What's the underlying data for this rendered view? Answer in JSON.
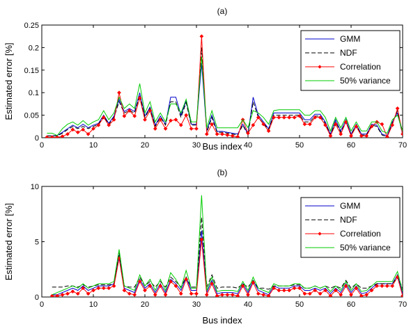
{
  "chart_data": [
    {
      "type": "line",
      "title": "(a)",
      "xlabel": "Bus index",
      "ylabel": "Estimated error [%]",
      "xlim": [
        0,
        70
      ],
      "ylim": [
        0,
        0.25
      ],
      "xticks": [
        0,
        10,
        20,
        30,
        40,
        50,
        60,
        70
      ],
      "yticks": [
        0,
        0.05,
        0.1,
        0.15,
        0.2,
        0.25
      ],
      "ytick_labels": [
        "0",
        "0.05",
        "0.1",
        "0.15",
        "0.2",
        "0.25"
      ],
      "grid": false,
      "legend": "top-right",
      "x": [
        1,
        2,
        3,
        4,
        5,
        6,
        7,
        8,
        9,
        10,
        11,
        12,
        13,
        14,
        15,
        16,
        17,
        18,
        19,
        20,
        21,
        22,
        23,
        24,
        25,
        26,
        27,
        28,
        29,
        30,
        31,
        32,
        33,
        34,
        35,
        36,
        37,
        38,
        39,
        40,
        41,
        42,
        43,
        44,
        45,
        46,
        47,
        48,
        49,
        50,
        51,
        52,
        53,
        54,
        55,
        56,
        57,
        58,
        59,
        60,
        61,
        62,
        63,
        64,
        65,
        66,
        67,
        68,
        69,
        70
      ],
      "series": [
        {
          "name": "GMM",
          "color": "#0000cc",
          "style": "solid",
          "marker": "none",
          "values": [
            0.004,
            0.004,
            0.005,
            0.012,
            0.02,
            0.028,
            0.022,
            0.03,
            0.022,
            0.028,
            0.032,
            0.05,
            0.032,
            0.048,
            0.085,
            0.058,
            0.065,
            0.058,
            0.1,
            0.048,
            0.068,
            0.028,
            0.048,
            0.03,
            0.09,
            0.09,
            0.05,
            0.082,
            0.03,
            0.03,
            0.165,
            0.015,
            0.05,
            0.014,
            0.014,
            0.012,
            0.01,
            0.008,
            0.03,
            0.008,
            0.09,
            0.05,
            0.035,
            0.02,
            0.055,
            0.055,
            0.055,
            0.055,
            0.055,
            0.055,
            0.04,
            0.04,
            0.052,
            0.052,
            0.035,
            0.008,
            0.04,
            0.015,
            0.04,
            0.008,
            0.03,
            0.008,
            0.008,
            0.03,
            0.028,
            0.008,
            0.004,
            0.035,
            0.055,
            0.008
          ]
        },
        {
          "name": "NDF",
          "color": "#000000",
          "style": "dashed",
          "marker": "none",
          "values": [
            0.004,
            0.004,
            0.004,
            0.01,
            0.018,
            0.025,
            0.02,
            0.025,
            0.02,
            0.025,
            0.03,
            0.048,
            0.03,
            0.045,
            0.08,
            0.055,
            0.06,
            0.055,
            0.095,
            0.045,
            0.065,
            0.025,
            0.045,
            0.028,
            0.08,
            0.08,
            0.045,
            0.078,
            0.028,
            0.028,
            0.2,
            0.012,
            0.045,
            0.012,
            0.012,
            0.01,
            0.008,
            0.006,
            0.028,
            0.006,
            0.08,
            0.045,
            0.032,
            0.018,
            0.05,
            0.05,
            0.05,
            0.05,
            0.05,
            0.05,
            0.035,
            0.035,
            0.048,
            0.048,
            0.032,
            0.006,
            0.035,
            0.012,
            0.035,
            0.006,
            0.028,
            0.006,
            0.006,
            0.028,
            0.025,
            0.006,
            0.002,
            0.032,
            0.06,
            0.006
          ]
        },
        {
          "name": "Correlation",
          "color": "#ff0000",
          "style": "solid",
          "marker": "diamond",
          "values": [
            0.001,
            0.001,
            0.001,
            0.003,
            0.008,
            0.018,
            0.012,
            0.018,
            0.008,
            0.02,
            0.028,
            0.045,
            0.028,
            0.04,
            0.1,
            0.048,
            0.06,
            0.048,
            0.088,
            0.04,
            0.06,
            0.02,
            0.04,
            0.02,
            0.038,
            0.04,
            0.028,
            0.05,
            0.02,
            0.02,
            0.225,
            0.008,
            0.03,
            0.008,
            0.008,
            0.006,
            0.004,
            0.002,
            0.04,
            0.01,
            0.028,
            0.045,
            0.03,
            0.015,
            0.045,
            0.045,
            0.045,
            0.045,
            0.045,
            0.048,
            0.03,
            0.03,
            0.045,
            0.045,
            0.028,
            0.004,
            0.03,
            0.008,
            0.035,
            0.004,
            0.025,
            0.004,
            0.004,
            0.025,
            0.035,
            0.03,
            0.002,
            0.028,
            0.065,
            0.008
          ]
        },
        {
          "name": "50% variance",
          "color": "#00cc00",
          "style": "solid",
          "marker": "none",
          "values": [
            0.01,
            0.01,
            0.005,
            0.02,
            0.03,
            0.035,
            0.028,
            0.038,
            0.028,
            0.035,
            0.04,
            0.06,
            0.04,
            0.055,
            0.09,
            0.065,
            0.075,
            0.065,
            0.12,
            0.055,
            0.08,
            0.035,
            0.055,
            0.035,
            0.075,
            0.075,
            0.055,
            0.085,
            0.035,
            0.035,
            0.18,
            0.022,
            0.06,
            0.022,
            0.022,
            0.022,
            0.022,
            0.022,
            0.04,
            0.022,
            0.06,
            0.055,
            0.045,
            0.03,
            0.06,
            0.062,
            0.062,
            0.062,
            0.062,
            0.062,
            0.05,
            0.05,
            0.06,
            0.06,
            0.045,
            0.015,
            0.045,
            0.022,
            0.045,
            0.015,
            0.035,
            0.015,
            0.015,
            0.035,
            0.035,
            0.015,
            0.01,
            0.04,
            0.05,
            0.015
          ]
        }
      ]
    },
    {
      "type": "line",
      "title": "(b)",
      "xlabel": "Bus index",
      "ylabel": "Estimated error [%]",
      "xlim": [
        0,
        70
      ],
      "ylim": [
        0,
        10
      ],
      "xticks": [
        0,
        10,
        20,
        30,
        40,
        50,
        60,
        70
      ],
      "yticks": [
        0,
        5,
        10
      ],
      "ytick_labels": [
        "0",
        "5",
        "10"
      ],
      "grid": false,
      "legend": "top-right",
      "x": [
        2,
        3,
        4,
        5,
        6,
        7,
        8,
        9,
        10,
        11,
        12,
        13,
        14,
        15,
        16,
        17,
        18,
        19,
        20,
        21,
        22,
        23,
        24,
        25,
        26,
        27,
        28,
        29,
        30,
        31,
        32,
        33,
        34,
        35,
        36,
        37,
        38,
        39,
        40,
        41,
        42,
        43,
        44,
        45,
        46,
        47,
        48,
        49,
        50,
        51,
        52,
        53,
        54,
        55,
        56,
        57,
        58,
        59,
        60,
        61,
        62,
        63,
        64,
        65,
        66,
        67,
        68,
        69,
        70
      ],
      "series": [
        {
          "name": "GMM",
          "color": "#0000cc",
          "style": "solid",
          "marker": "none",
          "values": [
            0.2,
            0.2,
            0.4,
            0.6,
            0.8,
            0.6,
            1.0,
            0.6,
            0.8,
            1.0,
            1.0,
            1.0,
            1.2,
            3.8,
            0.8,
            0.6,
            0.4,
            1.6,
            0.8,
            1.2,
            0.4,
            1.2,
            0.4,
            1.6,
            1.2,
            0.6,
            1.8,
            0.6,
            0.6,
            6.0,
            0.4,
            1.5,
            0.3,
            0.4,
            0.4,
            0.4,
            0.3,
            1.2,
            0.4,
            1.5,
            0.6,
            0.4,
            0.2,
            1.0,
            0.8,
            0.8,
            0.8,
            1.0,
            1.0,
            0.6,
            0.6,
            0.8,
            0.6,
            0.8,
            0.3,
            0.8,
            0.4,
            1.2,
            0.4,
            1.0,
            0.3,
            0.4,
            0.8,
            1.2,
            1.2,
            1.2,
            1.2,
            2.0,
            0.3
          ]
        },
        {
          "name": "NDF",
          "color": "#000000",
          "style": "dashed",
          "marker": "none",
          "values": [
            0.9,
            0.9,
            0.9,
            1.0,
            1.0,
            0.9,
            1.1,
            0.9,
            1.0,
            1.1,
            1.1,
            1.1,
            1.2,
            4.0,
            1.0,
            0.9,
            0.9,
            1.8,
            1.0,
            1.4,
            0.9,
            1.4,
            0.9,
            1.8,
            1.4,
            0.9,
            1.8,
            0.9,
            0.9,
            7.2,
            0.9,
            2.0,
            0.8,
            0.9,
            0.9,
            0.9,
            0.8,
            1.2,
            0.9,
            1.5,
            0.8,
            0.8,
            0.7,
            1.0,
            1.0,
            1.0,
            1.0,
            1.1,
            1.1,
            0.8,
            0.8,
            1.0,
            0.8,
            1.0,
            0.8,
            1.0,
            0.8,
            1.5,
            0.8,
            1.2,
            0.8,
            0.8,
            1.0,
            1.2,
            1.2,
            1.2,
            1.2,
            1.8,
            0.8
          ]
        },
        {
          "name": "Correlation",
          "color": "#ff0000",
          "style": "solid",
          "marker": "diamond",
          "values": [
            0.1,
            0.1,
            0.2,
            0.3,
            0.5,
            0.3,
            0.8,
            0.3,
            0.6,
            0.8,
            0.8,
            0.8,
            1.0,
            3.5,
            0.6,
            0.3,
            0.2,
            1.4,
            0.6,
            1.0,
            0.2,
            1.0,
            0.2,
            1.4,
            1.0,
            0.3,
            1.6,
            0.3,
            0.3,
            5.2,
            0.2,
            1.2,
            0.1,
            0.2,
            0.2,
            0.2,
            0.1,
            1.0,
            0.2,
            1.3,
            0.3,
            0.2,
            0.1,
            0.8,
            0.6,
            0.6,
            0.6,
            0.8,
            0.8,
            0.3,
            0.3,
            0.6,
            0.3,
            0.6,
            0.1,
            0.6,
            0.2,
            1.0,
            0.2,
            0.8,
            0.1,
            0.2,
            0.6,
            1.0,
            1.0,
            1.0,
            1.0,
            1.8,
            0.1
          ]
        },
        {
          "name": "50% variance",
          "color": "#00cc00",
          "style": "solid",
          "marker": "none",
          "values": [
            0.2,
            0.4,
            0.6,
            0.8,
            1.0,
            0.8,
            1.2,
            0.8,
            1.0,
            1.2,
            1.2,
            1.2,
            1.4,
            4.3,
            1.0,
            0.8,
            0.6,
            2.0,
            1.0,
            1.6,
            0.6,
            1.6,
            0.6,
            2.2,
            1.6,
            0.8,
            2.4,
            0.8,
            0.8,
            9.2,
            0.6,
            1.8,
            0.5,
            0.6,
            0.6,
            0.6,
            0.5,
            1.4,
            0.6,
            1.8,
            0.8,
            0.6,
            0.4,
            1.2,
            1.0,
            1.0,
            1.0,
            1.2,
            1.2,
            0.8,
            0.8,
            1.0,
            0.8,
            1.0,
            0.5,
            1.0,
            0.6,
            1.4,
            0.6,
            1.2,
            0.5,
            0.6,
            1.0,
            1.4,
            1.4,
            1.4,
            1.4,
            2.3,
            0.5
          ]
        }
      ]
    }
  ]
}
